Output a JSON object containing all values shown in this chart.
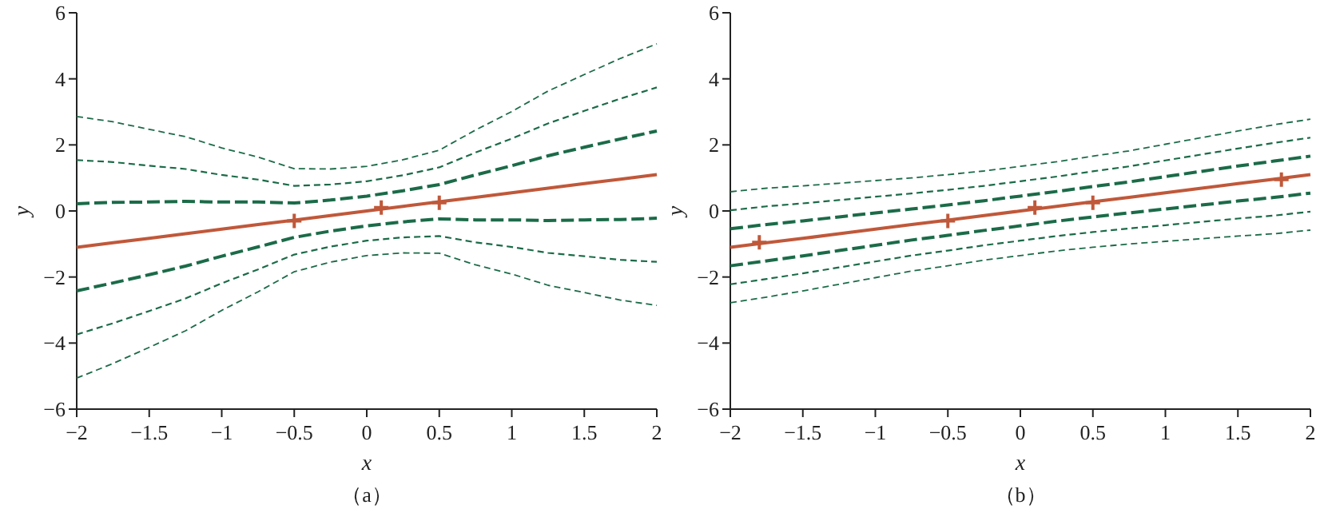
{
  "chart_data": [
    {
      "type": "line",
      "xlabel": "x",
      "ylabel": "y",
      "annotations": [
        "（a）"
      ],
      "xlim": [
        -2,
        2
      ],
      "ylim": [
        -6,
        6
      ],
      "xticks": [
        {
          "value": -2,
          "label": "−2"
        },
        {
          "value": -1.5,
          "label": "−1.5"
        },
        {
          "value": -1,
          "label": "−1"
        },
        {
          "value": -0.5,
          "label": "−0.5"
        },
        0,
        0.5,
        1,
        1.5,
        2
      ],
      "yticks": [
        {
          "value": -6,
          "label": "−6"
        },
        {
          "value": -4,
          "label": "−4"
        },
        {
          "value": -2,
          "label": "−2"
        },
        0,
        2,
        4,
        6
      ],
      "x": [
        -2,
        -1.75,
        -1.5,
        -1.25,
        -1,
        -0.75,
        -0.5,
        -0.25,
        0,
        0.25,
        0.5,
        0.75,
        1,
        1.25,
        1.5,
        1.75,
        2
      ],
      "series": [
        {
          "type": "line",
          "color": "#1b6b48",
          "line_style": "dashed",
          "values": [
            2.86,
            2.7,
            2.47,
            2.25,
            1.91,
            1.63,
            1.28,
            1.27,
            1.35,
            1.55,
            1.84,
            2.45,
            3.01,
            3.63,
            4.13,
            4.62,
            5.06
          ]
        },
        {
          "type": "line",
          "color": "#1b6b48",
          "line_style": "dashed",
          "values": [
            1.54,
            1.48,
            1.37,
            1.27,
            1.09,
            0.95,
            0.76,
            0.8,
            0.9,
            1.08,
            1.32,
            1.77,
            2.19,
            2.65,
            3.03,
            3.4,
            3.74
          ]
        },
        {
          "type": "line",
          "color": "#1b6b48",
          "line_style": "dashed",
          "values": [
            0.22,
            0.26,
            0.27,
            0.29,
            0.27,
            0.27,
            0.24,
            0.33,
            0.45,
            0.61,
            0.8,
            1.09,
            1.37,
            1.67,
            1.93,
            2.18,
            2.42
          ]
        },
        {
          "type": "line",
          "color": "#1b6b48",
          "line_style": "dashed",
          "values": [
            -2.42,
            -2.18,
            -1.93,
            -1.67,
            -1.37,
            -1.09,
            -0.8,
            -0.61,
            -0.45,
            -0.33,
            -0.24,
            -0.27,
            -0.27,
            -0.29,
            -0.27,
            -0.26,
            -0.22
          ]
        },
        {
          "type": "line",
          "color": "#1b6b48",
          "line_style": "dashed",
          "values": [
            -3.74,
            -3.4,
            -3.03,
            -2.65,
            -2.19,
            -1.77,
            -1.32,
            -1.08,
            -0.9,
            -0.8,
            -0.76,
            -0.95,
            -1.09,
            -1.27,
            -1.37,
            -1.48,
            -1.54
          ]
        },
        {
          "type": "line",
          "color": "#1b6b48",
          "line_style": "dashed",
          "values": [
            -5.06,
            -4.62,
            -4.13,
            -3.63,
            -3.01,
            -2.45,
            -1.84,
            -1.55,
            -1.35,
            -1.27,
            -1.28,
            -1.63,
            -1.91,
            -2.25,
            -2.47,
            -2.7,
            -2.86
          ]
        },
        {
          "type": "line",
          "color": "#c0583a",
          "line_style": "solid",
          "values": [
            -1.1,
            -0.96,
            -0.83,
            -0.69,
            -0.55,
            -0.41,
            -0.28,
            -0.14,
            0,
            0.14,
            0.28,
            0.41,
            0.55,
            0.69,
            0.83,
            0.96,
            1.1
          ]
        },
        {
          "type": "scatter",
          "color": "#c0583a",
          "marker": "cross",
          "x": [
            -0.5,
            0.1,
            0.5
          ],
          "values": [
            -0.3,
            0.1,
            0.25
          ]
        }
      ]
    },
    {
      "type": "line",
      "xlabel": "x",
      "ylabel": "y",
      "annotations": [
        "（b）"
      ],
      "xlim": [
        -2,
        2
      ],
      "ylim": [
        -6,
        6
      ],
      "xticks": [
        {
          "value": -2,
          "label": "−2"
        },
        {
          "value": -1.5,
          "label": "−1.5"
        },
        {
          "value": -1,
          "label": "−1"
        },
        {
          "value": -0.5,
          "label": "−0.5"
        },
        0,
        0.5,
        1,
        1.5,
        2
      ],
      "yticks": [
        {
          "value": -6,
          "label": "−6"
        },
        {
          "value": -4,
          "label": "−4"
        },
        {
          "value": -2,
          "label": "−2"
        },
        0,
        2,
        4,
        6
      ],
      "x": [
        -2,
        -1.75,
        -1.5,
        -1.25,
        -1,
        -0.75,
        -0.5,
        -0.25,
        0,
        0.25,
        0.5,
        0.75,
        1,
        1.25,
        1.5,
        1.75,
        2
      ],
      "series": [
        {
          "type": "line",
          "color": "#1b6b48",
          "line_style": "dashed",
          "values": [
            0.58,
            0.69,
            0.76,
            0.84,
            0.92,
            1.0,
            1.1,
            1.21,
            1.35,
            1.49,
            1.66,
            1.82,
            2.02,
            2.22,
            2.42,
            2.61,
            2.78
          ]
        },
        {
          "type": "line",
          "color": "#1b6b48",
          "line_style": "dashed",
          "values": [
            0.02,
            0.14,
            0.23,
            0.33,
            0.43,
            0.53,
            0.64,
            0.76,
            0.9,
            1.04,
            1.2,
            1.35,
            1.53,
            1.71,
            1.89,
            2.06,
            2.22
          ]
        },
        {
          "type": "line",
          "color": "#1b6b48",
          "line_style": "dashed",
          "values": [
            -0.54,
            -0.41,
            -0.3,
            -0.18,
            -0.06,
            0.06,
            0.18,
            0.31,
            0.45,
            0.59,
            0.74,
            0.88,
            1.04,
            1.2,
            1.36,
            1.51,
            1.66
          ]
        },
        {
          "type": "line",
          "color": "#1b6b48",
          "line_style": "dashed",
          "values": [
            -1.66,
            -1.51,
            -1.36,
            -1.2,
            -1.04,
            -0.88,
            -0.74,
            -0.59,
            -0.45,
            -0.31,
            -0.18,
            -0.06,
            0.06,
            0.18,
            0.3,
            0.41,
            0.54
          ]
        },
        {
          "type": "line",
          "color": "#1b6b48",
          "line_style": "dashed",
          "values": [
            -2.22,
            -2.06,
            -1.89,
            -1.71,
            -1.53,
            -1.35,
            -1.2,
            -1.04,
            -0.9,
            -0.76,
            -0.64,
            -0.53,
            -0.43,
            -0.33,
            -0.23,
            -0.14,
            -0.02
          ]
        },
        {
          "type": "line",
          "color": "#1b6b48",
          "line_style": "dashed",
          "values": [
            -2.78,
            -2.61,
            -2.42,
            -2.22,
            -2.02,
            -1.82,
            -1.66,
            -1.49,
            -1.35,
            -1.21,
            -1.1,
            -1.0,
            -0.92,
            -0.84,
            -0.76,
            -0.69,
            -0.58
          ]
        },
        {
          "type": "line",
          "color": "#c0583a",
          "line_style": "solid",
          "values": [
            -1.1,
            -0.96,
            -0.83,
            -0.69,
            -0.55,
            -0.41,
            -0.28,
            -0.14,
            0,
            0.14,
            0.28,
            0.41,
            0.55,
            0.69,
            0.83,
            0.96,
            1.1
          ]
        },
        {
          "type": "scatter",
          "color": "#c0583a",
          "marker": "cross",
          "x": [
            -1.8,
            -0.5,
            0.1,
            0.5,
            1.8
          ],
          "values": [
            -0.95,
            -0.3,
            0.1,
            0.25,
            0.95
          ]
        }
      ]
    }
  ]
}
